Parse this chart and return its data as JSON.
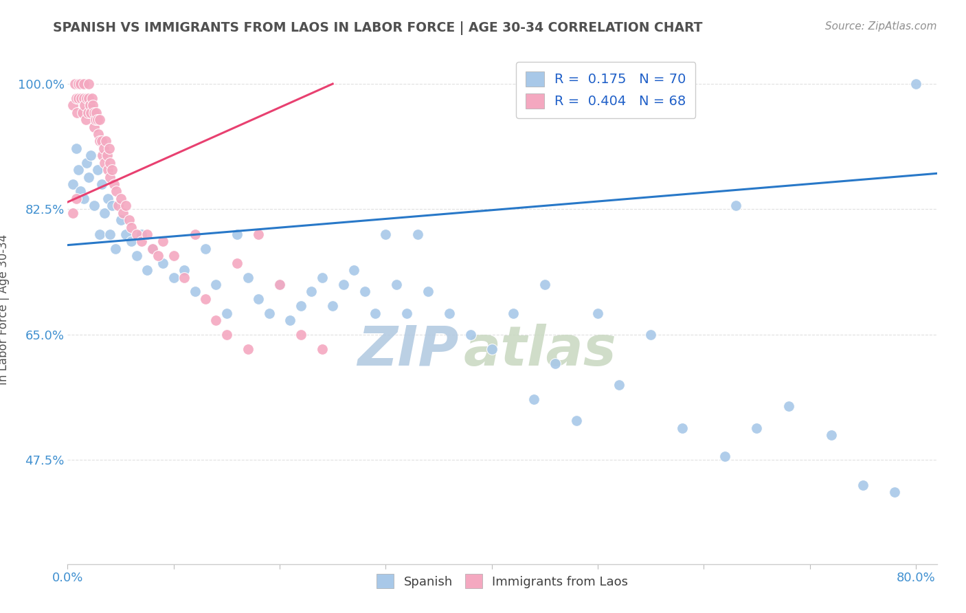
{
  "title": "SPANISH VS IMMIGRANTS FROM LAOS IN LABOR FORCE | AGE 30-34 CORRELATION CHART",
  "source_text": "Source: ZipAtlas.com",
  "ylabel": "In Labor Force | Age 30-34",
  "x_min": 0.0,
  "x_max": 0.82,
  "y_min": 0.33,
  "y_max": 1.04,
  "y_ticks": [
    0.475,
    0.65,
    0.825,
    1.0
  ],
  "y_tick_labels": [
    "47.5%",
    "65.0%",
    "82.5%",
    "100.0%"
  ],
  "legend_r_blue": "R =  0.175",
  "legend_n_blue": "N = 70",
  "legend_r_pink": "R =  0.404",
  "legend_n_pink": "N = 68",
  "watermark_zip": "ZIP",
  "watermark_atlas": "atlas",
  "watermark_color": "#c8d8e8",
  "blue_color": "#a8c8e8",
  "pink_color": "#f4a8c0",
  "blue_line_color": "#2878c8",
  "pink_line_color": "#e84070",
  "bg_color": "#ffffff",
  "grid_color": "#e0e0e0",
  "title_color": "#505050",
  "tick_color": "#4090d0",
  "blue_scatter_x": [
    0.005,
    0.008,
    0.01,
    0.012,
    0.015,
    0.018,
    0.02,
    0.022,
    0.025,
    0.028,
    0.03,
    0.032,
    0.035,
    0.038,
    0.04,
    0.042,
    0.045,
    0.05,
    0.055,
    0.06,
    0.065,
    0.07,
    0.075,
    0.08,
    0.09,
    0.1,
    0.11,
    0.12,
    0.13,
    0.14,
    0.15,
    0.16,
    0.17,
    0.18,
    0.19,
    0.2,
    0.21,
    0.22,
    0.23,
    0.24,
    0.25,
    0.26,
    0.27,
    0.28,
    0.29,
    0.3,
    0.31,
    0.32,
    0.33,
    0.34,
    0.36,
    0.38,
    0.4,
    0.42,
    0.44,
    0.46,
    0.48,
    0.5,
    0.52,
    0.55,
    0.58,
    0.62,
    0.65,
    0.68,
    0.72,
    0.75,
    0.78,
    0.8,
    0.63,
    0.45
  ],
  "blue_scatter_y": [
    0.86,
    0.91,
    0.88,
    0.85,
    0.84,
    0.89,
    0.87,
    0.9,
    0.83,
    0.88,
    0.79,
    0.86,
    0.82,
    0.84,
    0.79,
    0.83,
    0.77,
    0.81,
    0.79,
    0.78,
    0.76,
    0.79,
    0.74,
    0.77,
    0.75,
    0.73,
    0.74,
    0.71,
    0.77,
    0.72,
    0.68,
    0.79,
    0.73,
    0.7,
    0.68,
    0.72,
    0.67,
    0.69,
    0.71,
    0.73,
    0.69,
    0.72,
    0.74,
    0.71,
    0.68,
    0.79,
    0.72,
    0.68,
    0.79,
    0.71,
    0.68,
    0.65,
    0.63,
    0.68,
    0.56,
    0.61,
    0.53,
    0.68,
    0.58,
    0.65,
    0.52,
    0.48,
    0.52,
    0.55,
    0.51,
    0.44,
    0.43,
    1.0,
    0.83,
    0.72
  ],
  "pink_scatter_x": [
    0.005,
    0.007,
    0.008,
    0.009,
    0.01,
    0.01,
    0.012,
    0.013,
    0.014,
    0.015,
    0.015,
    0.016,
    0.017,
    0.018,
    0.019,
    0.02,
    0.02,
    0.021,
    0.022,
    0.023,
    0.024,
    0.025,
    0.025,
    0.026,
    0.027,
    0.028,
    0.029,
    0.03,
    0.03,
    0.032,
    0.033,
    0.034,
    0.035,
    0.036,
    0.037,
    0.038,
    0.039,
    0.04,
    0.04,
    0.042,
    0.044,
    0.046,
    0.048,
    0.05,
    0.052,
    0.055,
    0.058,
    0.06,
    0.065,
    0.07,
    0.075,
    0.08,
    0.085,
    0.09,
    0.1,
    0.11,
    0.12,
    0.13,
    0.14,
    0.15,
    0.16,
    0.17,
    0.18,
    0.2,
    0.22,
    0.24,
    0.005,
    0.008
  ],
  "pink_scatter_y": [
    0.97,
    1.0,
    0.98,
    0.96,
    1.0,
    0.98,
    1.0,
    0.98,
    0.96,
    1.0,
    0.98,
    0.97,
    0.95,
    0.98,
    0.96,
    1.0,
    0.98,
    0.97,
    0.96,
    0.98,
    0.97,
    0.96,
    0.94,
    0.95,
    0.96,
    0.95,
    0.93,
    0.92,
    0.95,
    0.92,
    0.9,
    0.91,
    0.89,
    0.92,
    0.9,
    0.88,
    0.91,
    0.89,
    0.87,
    0.88,
    0.86,
    0.85,
    0.83,
    0.84,
    0.82,
    0.83,
    0.81,
    0.8,
    0.79,
    0.78,
    0.79,
    0.77,
    0.76,
    0.78,
    0.76,
    0.73,
    0.79,
    0.7,
    0.67,
    0.65,
    0.75,
    0.63,
    0.79,
    0.72,
    0.65,
    0.63,
    0.82,
    0.84
  ],
  "blue_trend_x0": 0.0,
  "blue_trend_x1": 0.82,
  "blue_trend_y0": 0.775,
  "blue_trend_y1": 0.875,
  "pink_trend_x0": 0.0,
  "pink_trend_x1": 0.25,
  "pink_trend_y0": 0.835,
  "pink_trend_y1": 1.0
}
